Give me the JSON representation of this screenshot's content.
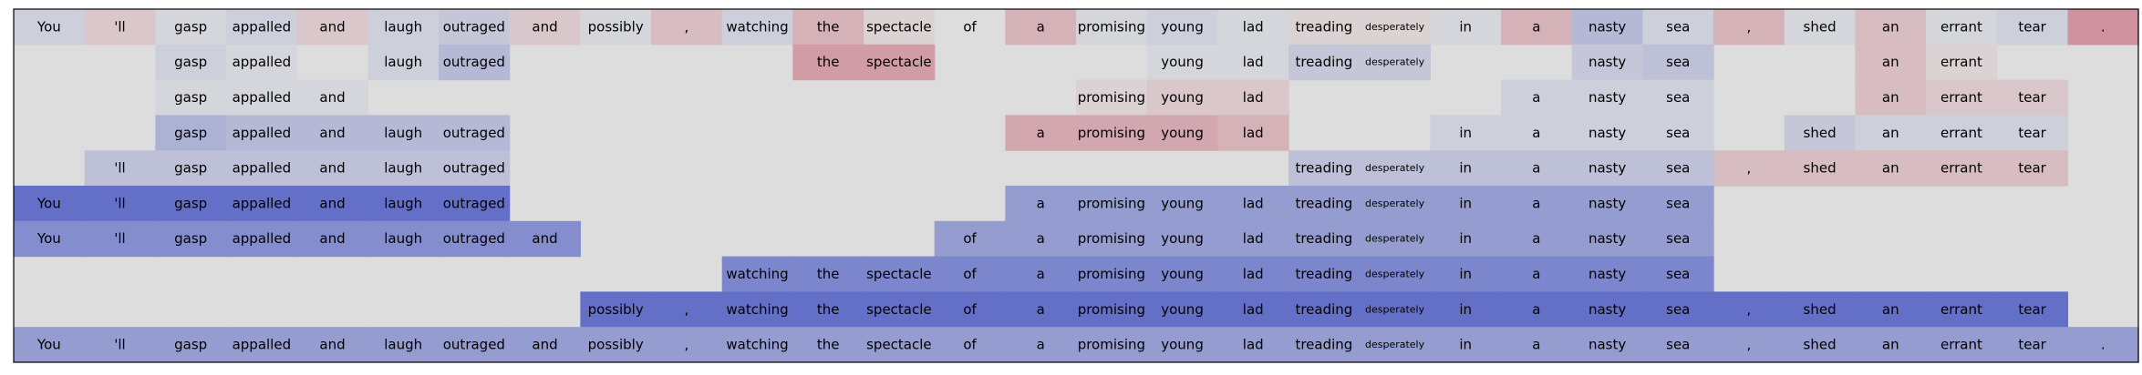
{
  "chart_data": {
    "type": "heatmap",
    "tokens": [
      "You",
      "'ll",
      "gasp",
      "appalled",
      "and",
      "laugh",
      "outraged",
      "and",
      "possibly",
      ",",
      "watching",
      "the",
      "spectacle",
      "of",
      "a",
      "promising",
      "young",
      "lad",
      "treading",
      "desperately",
      "in",
      "a",
      "nasty",
      "sea",
      ",",
      "shed",
      "an",
      "errant",
      "tear",
      "."
    ],
    "colormap": {
      "negative": "#b40426",
      "neutral": "#dddddd",
      "positive": "#3b4cc0"
    },
    "rows": [
      {
        "values": [
          0.1,
          -0.1,
          0.05,
          0.1,
          -0.1,
          0.1,
          0.15,
          -0.1,
          0.05,
          -0.15,
          0.1,
          -0.2,
          -0.05,
          0.0,
          -0.2,
          0.05,
          0.1,
          0.05,
          -0.05,
          -0.05,
          0.05,
          -0.2,
          0.25,
          0.1,
          -0.2,
          0.05,
          -0.15,
          0.05,
          0.1,
          -0.35
        ],
        "show": [
          1,
          1,
          1,
          1,
          1,
          1,
          1,
          1,
          1,
          1,
          1,
          1,
          1,
          1,
          1,
          1,
          1,
          1,
          1,
          1,
          1,
          1,
          1,
          1,
          1,
          1,
          1,
          1,
          1,
          1
        ]
      },
      {
        "values": [
          0,
          0,
          0.1,
          0.05,
          0,
          0.1,
          0.25,
          0,
          0,
          0,
          0,
          -0.3,
          -0.3,
          0,
          0,
          0,
          0.05,
          0.05,
          0.15,
          0.15,
          0,
          0,
          0.15,
          0.2,
          0,
          0,
          -0.15,
          -0.05,
          0,
          0
        ],
        "show": [
          0,
          0,
          1,
          1,
          0,
          1,
          1,
          0,
          0,
          0,
          0,
          1,
          1,
          0,
          0,
          0,
          1,
          1,
          1,
          1,
          0,
          0,
          1,
          1,
          0,
          0,
          1,
          1,
          0,
          0
        ]
      },
      {
        "values": [
          0,
          0,
          0.05,
          0.05,
          0.05,
          0,
          0,
          0,
          0,
          0,
          0,
          0,
          0,
          0,
          0,
          -0.05,
          -0.1,
          -0.1,
          0,
          0,
          0,
          0.1,
          0.1,
          0.1,
          0,
          0,
          -0.15,
          -0.1,
          -0.1,
          0
        ],
        "show": [
          0,
          0,
          1,
          1,
          1,
          0,
          0,
          0,
          0,
          0,
          0,
          0,
          0,
          0,
          0,
          1,
          1,
          1,
          0,
          0,
          0,
          1,
          1,
          1,
          0,
          0,
          1,
          1,
          1,
          0
        ]
      },
      {
        "values": [
          0,
          0,
          0.3,
          0.25,
          0.25,
          0.25,
          0.25,
          0,
          0,
          0,
          0,
          0,
          0,
          0,
          -0.25,
          -0.25,
          -0.25,
          -0.2,
          0,
          0,
          0.1,
          0.1,
          0.1,
          0.1,
          0,
          0.15,
          0.1,
          0.1,
          0.1,
          0
        ],
        "show": [
          0,
          0,
          1,
          1,
          1,
          1,
          1,
          0,
          0,
          0,
          0,
          0,
          0,
          0,
          1,
          1,
          1,
          1,
          0,
          0,
          1,
          1,
          1,
          1,
          0,
          1,
          1,
          1,
          1,
          0
        ]
      },
      {
        "values": [
          0,
          0.2,
          0.2,
          0.2,
          0.2,
          0.2,
          0.2,
          0,
          0,
          0,
          0,
          0,
          0,
          0,
          0,
          0,
          0,
          0,
          0.2,
          0.2,
          0.2,
          0.2,
          0.2,
          0.2,
          -0.15,
          -0.15,
          -0.15,
          -0.15,
          -0.15,
          0
        ],
        "show": [
          0,
          1,
          1,
          1,
          1,
          1,
          1,
          0,
          0,
          0,
          0,
          0,
          0,
          0,
          0,
          0,
          0,
          0,
          1,
          1,
          1,
          1,
          1,
          1,
          1,
          1,
          1,
          1,
          1,
          0
        ]
      },
      {
        "values": [
          0.75,
          0.75,
          0.75,
          0.75,
          0.75,
          0.75,
          0.75,
          0,
          0,
          0,
          0,
          0,
          0,
          0,
          0.45,
          0.45,
          0.45,
          0.45,
          0.45,
          0.45,
          0.45,
          0.45,
          0.45,
          0.45,
          0,
          0,
          0,
          0,
          0,
          0
        ],
        "show": [
          1,
          1,
          1,
          1,
          1,
          1,
          1,
          0,
          0,
          0,
          0,
          0,
          0,
          0,
          1,
          1,
          1,
          1,
          1,
          1,
          1,
          1,
          1,
          1,
          0,
          0,
          0,
          0,
          0,
          0
        ]
      },
      {
        "values": [
          0.55,
          0.55,
          0.55,
          0.55,
          0.55,
          0.55,
          0.55,
          0.55,
          0,
          0,
          0,
          0,
          0,
          0.45,
          0.45,
          0.45,
          0.45,
          0.45,
          0.45,
          0.45,
          0.45,
          0.45,
          0.45,
          0.45,
          0,
          0,
          0,
          0,
          0,
          0
        ],
        "show": [
          1,
          1,
          1,
          1,
          1,
          1,
          1,
          1,
          0,
          0,
          0,
          0,
          0,
          1,
          1,
          1,
          1,
          1,
          1,
          1,
          1,
          1,
          1,
          1,
          0,
          0,
          0,
          0,
          0,
          0
        ]
      },
      {
        "values": [
          0,
          0,
          0,
          0,
          0,
          0,
          0,
          0,
          0,
          0,
          0.6,
          0.6,
          0.6,
          0.6,
          0.6,
          0.6,
          0.6,
          0.6,
          0.6,
          0.6,
          0.6,
          0.6,
          0.6,
          0.6,
          0,
          0,
          0,
          0,
          0,
          0
        ],
        "show": [
          0,
          0,
          0,
          0,
          0,
          0,
          0,
          0,
          0,
          0,
          1,
          1,
          1,
          1,
          1,
          1,
          1,
          1,
          1,
          1,
          1,
          1,
          1,
          1,
          0,
          0,
          0,
          0,
          0,
          0
        ]
      },
      {
        "values": [
          0,
          0,
          0,
          0,
          0,
          0,
          0,
          0,
          0.75,
          0.75,
          0.75,
          0.75,
          0.75,
          0.75,
          0.75,
          0.75,
          0.75,
          0.75,
          0.75,
          0.75,
          0.75,
          0.75,
          0.75,
          0.75,
          0.75,
          0.75,
          0.75,
          0.75,
          0.75,
          0
        ],
        "show": [
          0,
          0,
          0,
          0,
          0,
          0,
          0,
          0,
          1,
          1,
          1,
          1,
          1,
          1,
          1,
          1,
          1,
          1,
          1,
          1,
          1,
          1,
          1,
          1,
          1,
          1,
          1,
          1,
          1,
          0
        ]
      },
      {
        "values": [
          0.45,
          0.45,
          0.45,
          0.45,
          0.45,
          0.45,
          0.45,
          0.45,
          0.45,
          0.45,
          0.45,
          0.45,
          0.45,
          0.45,
          0.45,
          0.45,
          0.45,
          0.45,
          0.45,
          0.45,
          0.45,
          0.45,
          0.45,
          0.45,
          0.45,
          0.45,
          0.45,
          0.45,
          0.45,
          0.45
        ],
        "show": [
          1,
          1,
          1,
          1,
          1,
          1,
          1,
          1,
          1,
          1,
          1,
          1,
          1,
          1,
          1,
          1,
          1,
          1,
          1,
          1,
          1,
          1,
          1,
          1,
          1,
          1,
          1,
          1,
          1,
          1
        ]
      }
    ],
    "grid": false,
    "legend": "none"
  }
}
